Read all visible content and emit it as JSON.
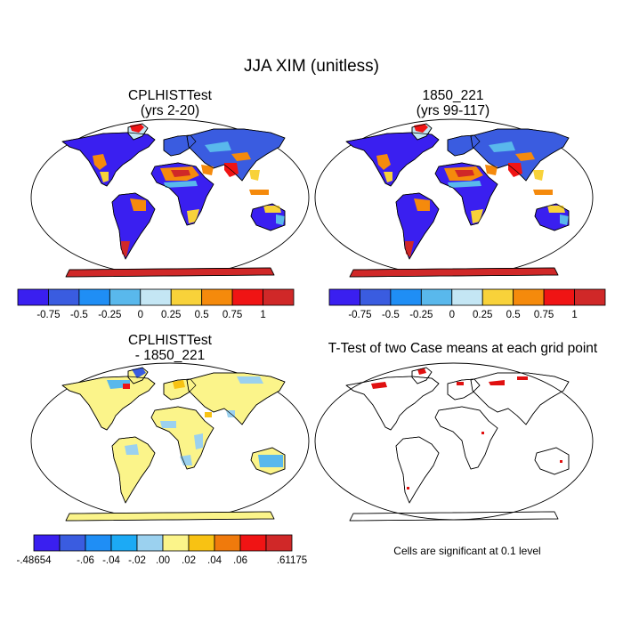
{
  "chart_data": {
    "type": "heatmap",
    "title": "JJA XIM (unitless)",
    "panels": [
      {
        "id": "case",
        "title_line1": "CPLHISTTest",
        "title_line2": "(yrs 2-20)",
        "colorbar_labels": [
          "-0.75",
          "-0.5",
          "-0.25",
          "0",
          "0.25",
          "0.5",
          "0.75",
          "1"
        ],
        "levels": [
          -0.75,
          -0.5,
          -0.25,
          0,
          0.25,
          0.5,
          0.75,
          1
        ]
      },
      {
        "id": "control",
        "title_line1": "1850_221",
        "title_line2": "(yrs 99-117)",
        "colorbar_labels": [
          "-0.75",
          "-0.5",
          "-0.25",
          "0",
          "0.25",
          "0.5",
          "0.75",
          "1"
        ],
        "levels": [
          -0.75,
          -0.5,
          -0.25,
          0,
          0.25,
          0.5,
          0.75,
          1
        ]
      },
      {
        "id": "difference",
        "title_line1": "CPLHISTTest",
        "title_line2": "- 1850_221",
        "colorbar_labels": [
          "-.48654",
          "-.06",
          "-.04",
          "-.02",
          ".00",
          ".02",
          ".04",
          ".06",
          ".61175"
        ],
        "levels": [
          -0.48654,
          -0.06,
          -0.04,
          -0.02,
          0.0,
          0.02,
          0.04,
          0.06,
          0.61175
        ]
      },
      {
        "id": "ttest",
        "title_line1": "T-Test of two Case means at each grid point",
        "note": "Cells are significant at 0.1 level",
        "significance_level": 0.1
      }
    ]
  },
  "colors": {
    "abs_scale": [
      "#3a1ff0",
      "#3a5ce0",
      "#1f8ef5",
      "#59b8ec",
      "#c4e6f4",
      "#f8d23a",
      "#f58a0c",
      "#f01414",
      "#d02828"
    ],
    "diff_scale": [
      "#3a1ff0",
      "#3a5ce0",
      "#1f8ef5",
      "#1caaf5",
      "#9bd1ef",
      "#fbf48a",
      "#f8c213",
      "#f07a0c",
      "#f01414",
      "#d02828"
    ],
    "significant": "#e01010",
    "coastline": "#000000"
  }
}
